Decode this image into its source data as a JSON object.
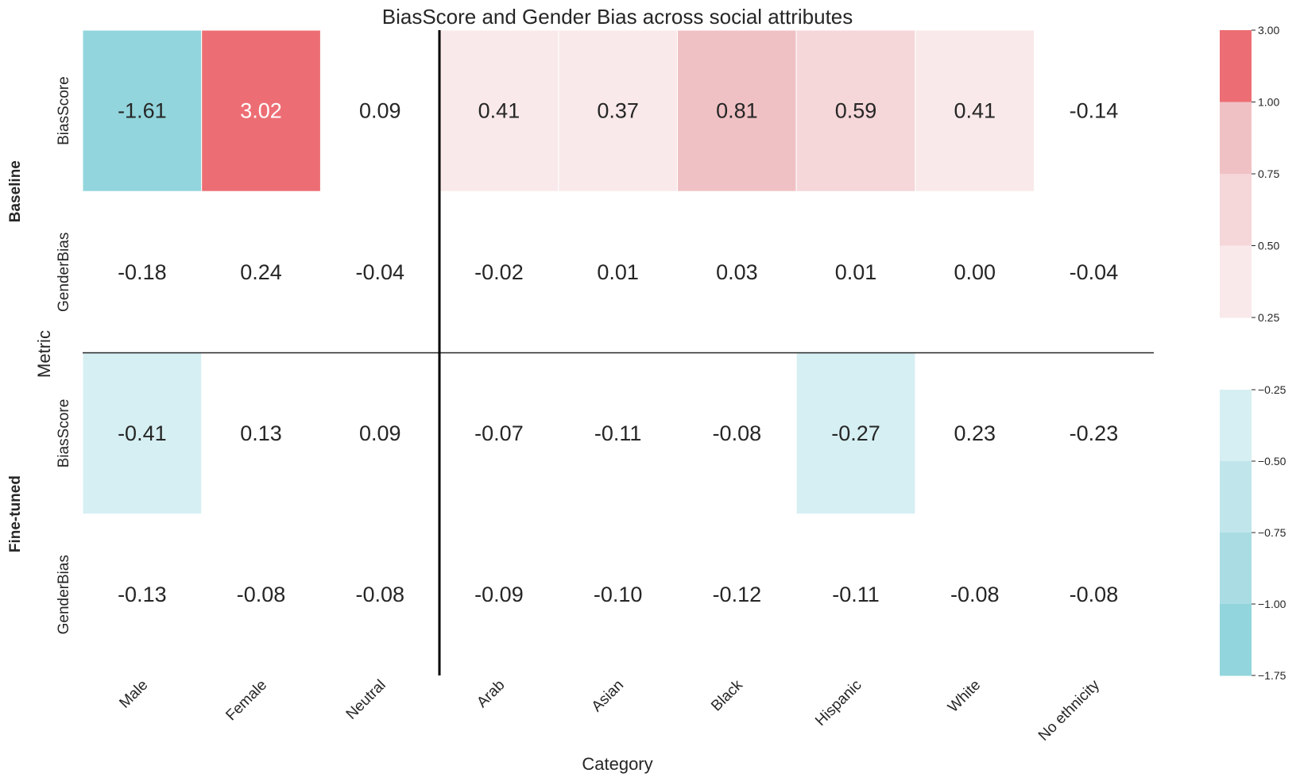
{
  "chart_data": {
    "type": "heatmap",
    "title": "BiasScore and Gender Bias across social attributes",
    "xlabel": "Category",
    "ylabel": "Metric",
    "categories": [
      "Male",
      "Female",
      "Neutral",
      "Arab",
      "Asian",
      "Black",
      "Hispanic",
      "White",
      "No ethnicity"
    ],
    "groups": [
      "Baseline",
      "Fine-tuned"
    ],
    "rows": [
      {
        "group": "Baseline",
        "metric": "BiasScore",
        "values": [
          -1.61,
          3.02,
          0.09,
          0.41,
          0.37,
          0.81,
          0.59,
          0.41,
          -0.14
        ],
        "labels": [
          "-1.61",
          "3.02",
          "0.09",
          "0.41",
          "0.37",
          "0.81",
          "0.59",
          "0.41",
          "-0.14"
        ]
      },
      {
        "group": "Baseline",
        "metric": "GenderBias",
        "values": [
          -0.18,
          0.24,
          -0.04,
          -0.02,
          0.01,
          0.03,
          0.01,
          0.0,
          -0.04
        ],
        "labels": [
          "-0.18",
          "0.24",
          "-0.04",
          "-0.02",
          "0.01",
          "0.03",
          "0.01",
          "0.00",
          "-0.04"
        ]
      },
      {
        "group": "Fine-tuned",
        "metric": "BiasScore",
        "values": [
          -0.41,
          0.13,
          0.09,
          -0.07,
          -0.11,
          -0.08,
          -0.27,
          0.23,
          -0.23
        ],
        "labels": [
          "-0.41",
          "0.13",
          "0.09",
          "-0.07",
          "-0.11",
          "-0.08",
          "-0.27",
          "0.23",
          "-0.23"
        ]
      },
      {
        "group": "Fine-tuned",
        "metric": "GenderBias",
        "values": [
          -0.13,
          -0.08,
          -0.08,
          -0.09,
          -0.1,
          -0.12,
          -0.11,
          -0.08,
          -0.08
        ],
        "labels": [
          "-0.13",
          "-0.08",
          "-0.08",
          "-0.09",
          "-0.10",
          "-0.12",
          "-0.11",
          "-0.08",
          "-0.08"
        ]
      }
    ],
    "colorbars": [
      {
        "name": "positive",
        "ticks": [
          "3.00",
          "1.00",
          "0.75",
          "0.50",
          "0.25"
        ],
        "bins": [
          {
            "min": 1.0,
            "max": 3.0,
            "color": "#ec6e74"
          },
          {
            "min": 0.75,
            "max": 1.0,
            "color": "#f0c1c4"
          },
          {
            "min": 0.5,
            "max": 0.75,
            "color": "#f5d6d9"
          },
          {
            "min": 0.25,
            "max": 0.5,
            "color": "#f9e9ea"
          }
        ]
      },
      {
        "name": "negative",
        "ticks": [
          "−0.25",
          "−0.50",
          "−0.75",
          "−1.00",
          "−1.75"
        ],
        "bins": [
          {
            "min": -0.5,
            "max": -0.25,
            "color": "#d6eff2"
          },
          {
            "min": -0.75,
            "max": -0.5,
            "color": "#c0e6eb"
          },
          {
            "min": -1.0,
            "max": -0.75,
            "color": "#a9dde3"
          },
          {
            "min": -1.75,
            "max": -1.0,
            "color": "#92d5dc"
          }
        ]
      }
    ],
    "colors": {
      "text_dark": "#262626",
      "text_light": "#ffffff",
      "cell_empty": "#ffffff"
    },
    "grid": false,
    "legend": "right"
  }
}
